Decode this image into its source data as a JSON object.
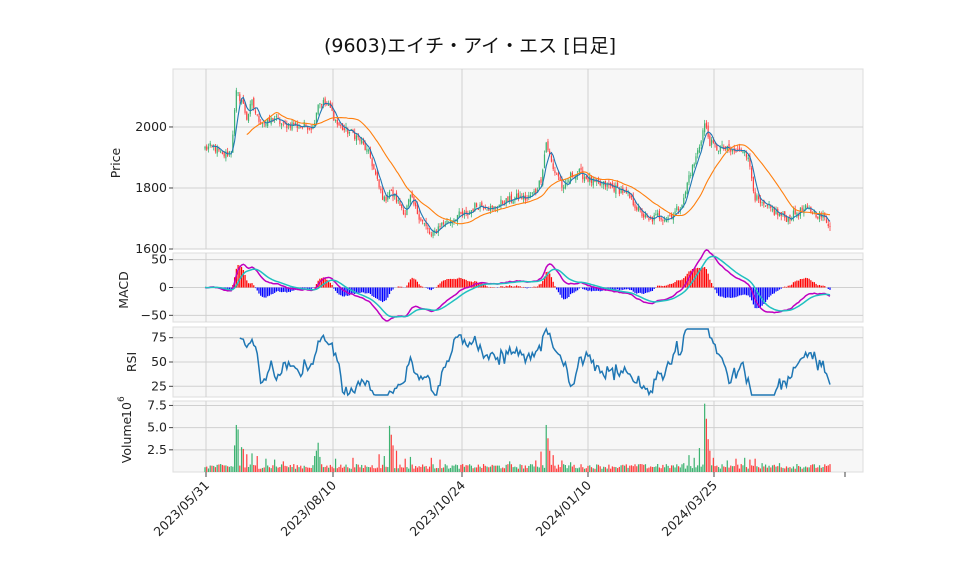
{
  "chart_data": {
    "type": "candlestick-multi-panel",
    "title": "(9603)エイチ・アイ・エス [日足]",
    "x_tick_labels": [
      "2023/05/31",
      "2023/08/10",
      "2023/10/24",
      "2024/01/10",
      "2024/03/25"
    ],
    "colors": {
      "up": "#3cb371",
      "down": "#ff4040",
      "ma_short": "#1f77b4",
      "ma_long": "#ff7f0e",
      "macd_line": "#c000c0",
      "signal_line": "#20c0c0",
      "hist_pos": "#ff0000",
      "hist_neg": "#0000ff",
      "rsi_line": "#1f77b4",
      "grid": "#d0d0d0",
      "panel_bg": "#f7f7f7"
    },
    "price_panel": {
      "ylabel": "Price",
      "yticks": [
        1600,
        1800,
        2000
      ],
      "ylim": [
        1600,
        2190
      ],
      "close_anchors": [
        [
          0,
          1930
        ],
        [
          5,
          1935
        ],
        [
          10,
          1905
        ],
        [
          15,
          1920
        ],
        [
          18,
          2110
        ],
        [
          21,
          2090
        ],
        [
          24,
          2030
        ],
        [
          27,
          2080
        ],
        [
          30,
          2030
        ],
        [
          35,
          2010
        ],
        [
          40,
          2030
        ],
        [
          45,
          2005
        ],
        [
          50,
          2010
        ],
        [
          55,
          2000
        ],
        [
          58,
          2005
        ],
        [
          62,
          2000
        ],
        [
          65,
          2080
        ],
        [
          68,
          2080
        ],
        [
          72,
          2060
        ],
        [
          76,
          2010
        ],
        [
          80,
          1990
        ],
        [
          85,
          1980
        ],
        [
          90,
          1950
        ],
        [
          95,
          1900
        ],
        [
          100,
          1800
        ],
        [
          103,
          1760
        ],
        [
          106,
          1790
        ],
        [
          110,
          1760
        ],
        [
          115,
          1720
        ],
        [
          118,
          1770
        ],
        [
          121,
          1730
        ],
        [
          125,
          1690
        ],
        [
          130,
          1640
        ],
        [
          135,
          1680
        ],
        [
          140,
          1690
        ],
        [
          145,
          1710
        ],
        [
          150,
          1710
        ],
        [
          155,
          1740
        ],
        [
          160,
          1745
        ],
        [
          165,
          1730
        ],
        [
          170,
          1750
        ],
        [
          175,
          1760
        ],
        [
          180,
          1770
        ],
        [
          185,
          1765
        ],
        [
          190,
          1790
        ],
        [
          193,
          1830
        ],
        [
          196,
          1950
        ],
        [
          200,
          1860
        ],
        [
          203,
          1840
        ],
        [
          206,
          1790
        ],
        [
          210,
          1840
        ],
        [
          215,
          1850
        ],
        [
          220,
          1830
        ],
        [
          225,
          1810
        ],
        [
          230,
          1810
        ],
        [
          235,
          1800
        ],
        [
          240,
          1790
        ],
        [
          245,
          1760
        ],
        [
          250,
          1720
        ],
        [
          255,
          1690
        ],
        [
          260,
          1710
        ],
        [
          265,
          1700
        ],
        [
          270,
          1720
        ],
        [
          275,
          1760
        ],
        [
          278,
          1840
        ],
        [
          281,
          1880
        ],
        [
          284,
          1940
        ],
        [
          287,
          2010
        ],
        [
          290,
          1950
        ],
        [
          294,
          1930
        ],
        [
          298,
          1930
        ],
        [
          302,
          1920
        ],
        [
          306,
          1920
        ],
        [
          310,
          1930
        ],
        [
          313,
          1870
        ],
        [
          316,
          1770
        ],
        [
          320,
          1740
        ],
        [
          325,
          1730
        ],
        [
          330,
          1710
        ],
        [
          335,
          1700
        ],
        [
          340,
          1720
        ],
        [
          345,
          1730
        ],
        [
          350,
          1720
        ],
        [
          353,
          1710
        ],
        [
          356,
          1700
        ],
        [
          358,
          1685
        ]
      ],
      "ma_short_period": 5,
      "ma_long_period": 25
    },
    "macd_panel": {
      "ylabel": "MACD",
      "yticks": [
        -50,
        0,
        50
      ],
      "ylim": [
        -62,
        62
      ]
    },
    "rsi_panel": {
      "ylabel": "RSI",
      "yticks": [
        25,
        50,
        75
      ],
      "ylim": [
        14,
        86
      ]
    },
    "volume_panel": {
      "ylabel": "Volume",
      "yticks": [
        2.5,
        5.0,
        7.5
      ],
      "ylim": [
        0,
        8.0
      ],
      "unit_text": "10",
      "unit_exp": "6",
      "base_volume": 0.6,
      "spikes": [
        [
          17,
          3.0
        ],
        [
          18,
          5.3
        ],
        [
          19,
          4.8
        ],
        [
          21,
          2.8
        ],
        [
          22,
          2.6
        ],
        [
          24,
          2.0
        ],
        [
          27,
          2.1
        ],
        [
          30,
          1.8
        ],
        [
          35,
          1.5
        ],
        [
          40,
          1.4
        ],
        [
          45,
          1.2
        ],
        [
          63,
          1.8
        ],
        [
          64,
          2.4
        ],
        [
          65,
          3.3
        ],
        [
          66,
          1.7
        ],
        [
          75,
          1.5
        ],
        [
          85,
          1.6
        ],
        [
          100,
          2.0
        ],
        [
          103,
          1.8
        ],
        [
          106,
          5.2
        ],
        [
          107,
          4.2
        ],
        [
          108,
          3.0
        ],
        [
          110,
          2.4
        ],
        [
          115,
          1.5
        ],
        [
          118,
          1.7
        ],
        [
          130,
          1.6
        ],
        [
          135,
          1.4
        ],
        [
          175,
          1.2
        ],
        [
          190,
          1.3
        ],
        [
          193,
          2.3
        ],
        [
          196,
          5.3
        ],
        [
          197,
          3.8
        ],
        [
          198,
          2.4
        ],
        [
          200,
          1.9
        ],
        [
          205,
          1.3
        ],
        [
          210,
          1.1
        ],
        [
          250,
          0.9
        ],
        [
          260,
          0.9
        ],
        [
          275,
          1.0
        ],
        [
          278,
          1.9
        ],
        [
          281,
          1.6
        ],
        [
          284,
          2.7
        ],
        [
          287,
          7.7
        ],
        [
          288,
          6.0
        ],
        [
          289,
          3.7
        ],
        [
          290,
          2.4
        ],
        [
          292,
          1.6
        ],
        [
          300,
          1.3
        ],
        [
          305,
          1.5
        ],
        [
          310,
          1.6
        ],
        [
          313,
          1.4
        ],
        [
          316,
          1.5
        ],
        [
          320,
          1.0
        ],
        [
          330,
          1.0
        ],
        [
          340,
          0.9
        ]
      ]
    }
  }
}
